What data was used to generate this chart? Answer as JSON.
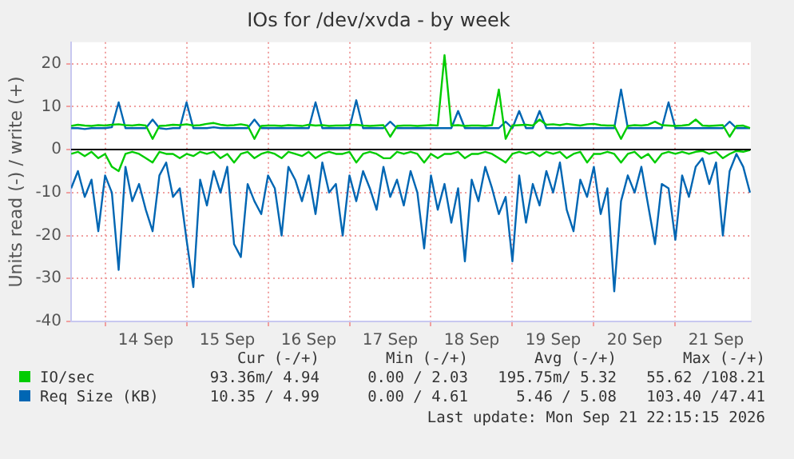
{
  "chart_data": {
    "type": "line",
    "title": "IOs for /dev/xvda - by week",
    "ylabel": "Units read (-) / write (+)",
    "x": [
      "2026-09-13T14:00",
      "2026-09-13T16:00",
      "2026-09-13T18:00",
      "2026-09-13T20:00",
      "2026-09-13T22:00",
      "2026-09-14T00:00",
      "2026-09-14T02:00",
      "2026-09-14T04:00",
      "2026-09-14T06:00",
      "2026-09-14T08:00",
      "2026-09-14T10:00",
      "2026-09-14T12:00",
      "2026-09-14T14:00",
      "2026-09-14T16:00",
      "2026-09-14T18:00",
      "2026-09-14T20:00",
      "2026-09-14T22:00",
      "2026-09-15T00:00",
      "2026-09-15T02:00",
      "2026-09-15T04:00",
      "2026-09-15T06:00",
      "2026-09-15T08:00",
      "2026-09-15T10:00",
      "2026-09-15T12:00",
      "2026-09-15T14:00",
      "2026-09-15T16:00",
      "2026-09-15T18:00",
      "2026-09-15T20:00",
      "2026-09-15T22:00",
      "2026-09-16T00:00",
      "2026-09-16T02:00",
      "2026-09-16T04:00",
      "2026-09-16T06:00",
      "2026-09-16T08:00",
      "2026-09-16T10:00",
      "2026-09-16T12:00",
      "2026-09-16T14:00",
      "2026-09-16T16:00",
      "2026-09-16T18:00",
      "2026-09-16T20:00",
      "2026-09-16T22:00",
      "2026-09-17T00:00",
      "2026-09-17T02:00",
      "2026-09-17T04:00",
      "2026-09-17T06:00",
      "2026-09-17T08:00",
      "2026-09-17T10:00",
      "2026-09-17T12:00",
      "2026-09-17T14:00",
      "2026-09-17T16:00",
      "2026-09-17T18:00",
      "2026-09-17T20:00",
      "2026-09-17T22:00",
      "2026-09-18T00:00",
      "2026-09-18T02:00",
      "2026-09-18T04:00",
      "2026-09-18T06:00",
      "2026-09-18T08:00",
      "2026-09-18T10:00",
      "2026-09-18T12:00",
      "2026-09-18T14:00",
      "2026-09-18T16:00",
      "2026-09-18T18:00",
      "2026-09-18T20:00",
      "2026-09-18T22:00",
      "2026-09-19T00:00",
      "2026-09-19T02:00",
      "2026-09-19T04:00",
      "2026-09-19T06:00",
      "2026-09-19T08:00",
      "2026-09-19T10:00",
      "2026-09-19T12:00",
      "2026-09-19T14:00",
      "2026-09-19T16:00",
      "2026-09-19T18:00",
      "2026-09-19T20:00",
      "2026-09-19T22:00",
      "2026-09-20T00:00",
      "2026-09-20T02:00",
      "2026-09-20T04:00",
      "2026-09-20T06:00",
      "2026-09-20T08:00",
      "2026-09-20T10:00",
      "2026-09-20T12:00",
      "2026-09-20T14:00",
      "2026-09-20T16:00",
      "2026-09-20T18:00",
      "2026-09-20T20:00",
      "2026-09-20T22:00",
      "2026-09-21T00:00",
      "2026-09-21T02:00",
      "2026-09-21T04:00",
      "2026-09-21T06:00",
      "2026-09-21T08:00",
      "2026-09-21T10:00",
      "2026-09-21T12:00",
      "2026-09-21T14:00",
      "2026-09-21T16:00",
      "2026-09-21T18:00",
      "2026-09-21T20:00",
      "2026-09-21T22:00"
    ],
    "series": [
      {
        "name": "IO/sec",
        "color": "#00cc00",
        "values": [
          5.5,
          5.8,
          5.6,
          5.5,
          5.7,
          5.6,
          5.8,
          5.9,
          5.7,
          5.6,
          5.8,
          5.6,
          2.5,
          5.5,
          5.6,
          5.8,
          5.7,
          5.9,
          5.6,
          5.7,
          6,
          6.2,
          5.8,
          5.6,
          5.7,
          5.9,
          5.6,
          2.5,
          5.5,
          5.6,
          5.6,
          5.5,
          5.7,
          5.6,
          5.5,
          5.8,
          5.6,
          5.7,
          5.5,
          5.6,
          5.6,
          5.7,
          5.8,
          5.6,
          5.5,
          5.6,
          5.7,
          3,
          5.5,
          5.6,
          5.6,
          5.5,
          5.6,
          5.7,
          5.6,
          22,
          5.6,
          5.7,
          5.5,
          5.6,
          5.6,
          5.5,
          5.7,
          14,
          2.5,
          5.6,
          5.7,
          5.8,
          5.6,
          7,
          5.8,
          5.9,
          5.7,
          6,
          5.8,
          5.6,
          5.9,
          6,
          5.7,
          5.6,
          5.6,
          2.5,
          5.5,
          5.7,
          5.6,
          5.8,
          6.5,
          5.7,
          5.6,
          5.5,
          5.6,
          5.8,
          7,
          5.6,
          5.5,
          5.6,
          5.7,
          3,
          5.5,
          5.6,
          5
        ]
      },
      {
        "color": "#00cc00",
        "values": [
          -1,
          -0.5,
          -1.5,
          -0.5,
          -2,
          -1,
          -4,
          -5,
          -1,
          -0.5,
          -1,
          -2,
          -3,
          -0.5,
          -1,
          -1,
          -2,
          -1,
          -1.5,
          -0.5,
          -1,
          -0.5,
          -2,
          -1,
          -3,
          -1,
          -0.5,
          -2,
          -1,
          -0.5,
          -1,
          -2,
          -0.5,
          -1,
          -1.5,
          -0.5,
          -2,
          -1,
          -0.5,
          -1,
          -1,
          -0.5,
          -3,
          -1,
          -0.5,
          -1,
          -2,
          -2,
          -0.5,
          -1,
          -0.5,
          -1,
          -3,
          -1,
          -2,
          -1,
          -1,
          -0.5,
          -2,
          -1,
          -1,
          -0.5,
          -1,
          -2,
          -3,
          -1,
          -0.5,
          -1,
          -0.5,
          -1.5,
          -0.5,
          -1,
          -0.5,
          -2,
          -1,
          -0.5,
          -3,
          -1,
          -1,
          -0.5,
          -1,
          -3,
          -1,
          -0.5,
          -2,
          -1,
          -3,
          -1,
          -0.5,
          -1,
          -0.5,
          -1,
          -0.5,
          -0.3,
          -1,
          -0.5,
          -2,
          -1,
          -0.3,
          -0.5,
          -0.1
        ]
      },
      {
        "name": "Req Size (KB)",
        "color": "#0066b3",
        "values": [
          5,
          5,
          4.8,
          5,
          5,
          5,
          5.2,
          11,
          5,
          5,
          5,
          5,
          7,
          5,
          4.8,
          5,
          5,
          11,
          5,
          5,
          5,
          5.2,
          5,
          5,
          5,
          5,
          5,
          7,
          5,
          5,
          5,
          5,
          5,
          5,
          5,
          5,
          11,
          5,
          5,
          5,
          5,
          5,
          11.5,
          5,
          5,
          5,
          5,
          6.5,
          5,
          5,
          5,
          5,
          5,
          5,
          5,
          5,
          5,
          9,
          5,
          5,
          5,
          5,
          5,
          5,
          6.5,
          5,
          9,
          5,
          5,
          9,
          5,
          5,
          5,
          5,
          5,
          5,
          5,
          5,
          5,
          5,
          5,
          14,
          5,
          5,
          5,
          5,
          5,
          5,
          11,
          5,
          5,
          5,
          5,
          5,
          5,
          5,
          5,
          6.5,
          5,
          5,
          5
        ]
      },
      {
        "color": "#0066b3",
        "values": [
          -9,
          -5,
          -11,
          -7,
          -19,
          -6,
          -10,
          -28,
          -4,
          -12,
          -8,
          -14,
          -19,
          -6,
          -3,
          -11,
          -9,
          -21,
          -32,
          -7,
          -13,
          -5,
          -10,
          -4,
          -22,
          -25,
          -8,
          -12,
          -15,
          -6,
          -9,
          -20,
          -4,
          -7,
          -12,
          -6,
          -15,
          -3,
          -10,
          -8,
          -20,
          -6,
          -12,
          -5,
          -9,
          -14,
          -4,
          -11,
          -7,
          -13,
          -5,
          -10,
          -23,
          -6,
          -14,
          -8,
          -17,
          -9,
          -26,
          -7,
          -12,
          -4,
          -9,
          -15,
          -11,
          -26,
          -6,
          -17,
          -8,
          -13,
          -5,
          -10,
          -3,
          -14,
          -19,
          -7,
          -11,
          -4,
          -15,
          -9,
          -33,
          -12,
          -6,
          -10,
          -4,
          -13,
          -22,
          -8,
          -9,
          -21,
          -6,
          -11,
          -4,
          -2,
          -8,
          -3,
          -20,
          -5,
          -1,
          -4,
          -10
        ]
      }
    ],
    "xlim": [
      "2026-09-13T14:00",
      "2026-09-21T22:15"
    ],
    "xticks": [
      {
        "value": "2026-09-14T00:00",
        "label": null
      },
      {
        "value": "2026-09-14T12:00",
        "label": "14 Sep"
      },
      {
        "value": "2026-09-15T00:00",
        "label": null
      },
      {
        "value": "2026-09-15T12:00",
        "label": "15 Sep"
      },
      {
        "value": "2026-09-16T00:00",
        "label": null
      },
      {
        "value": "2026-09-16T12:00",
        "label": "16 Sep"
      },
      {
        "value": "2026-09-17T00:00",
        "label": null
      },
      {
        "value": "2026-09-17T12:00",
        "label": "17 Sep"
      },
      {
        "value": "2026-09-18T00:00",
        "label": null
      },
      {
        "value": "2026-09-18T12:00",
        "label": "18 Sep"
      },
      {
        "value": "2026-09-19T00:00",
        "label": null
      },
      {
        "value": "2026-09-19T12:00",
        "label": "19 Sep"
      },
      {
        "value": "2026-09-20T00:00",
        "label": null
      },
      {
        "value": "2026-09-20T12:00",
        "label": "20 Sep"
      },
      {
        "value": "2026-09-21T00:00",
        "label": null
      },
      {
        "value": "2026-09-21T12:00",
        "label": "21 Sep"
      }
    ],
    "ylim": [
      -40,
      25
    ],
    "yticks": [
      -40,
      -30,
      -20,
      -10,
      0,
      10,
      20
    ],
    "ref_lines": [
      {
        "axis": "y",
        "value": 0,
        "color": "#000000"
      }
    ],
    "grid": true,
    "legend": "bottom",
    "annotations": [
      "Cur (-/+)",
      "Min (-/+)",
      "Avg (-/+)",
      "Max (-/+)",
      "93.36m/ 4.94",
      "0.00 / 2.03",
      "195.75m/ 5.32",
      "55.62 /108.21",
      "10.35 / 4.99",
      "0.00 / 4.61",
      "5.46 / 5.08",
      "103.40 /47.41",
      "Last update: Mon Sep 21 22:15:15 2026"
    ]
  }
}
